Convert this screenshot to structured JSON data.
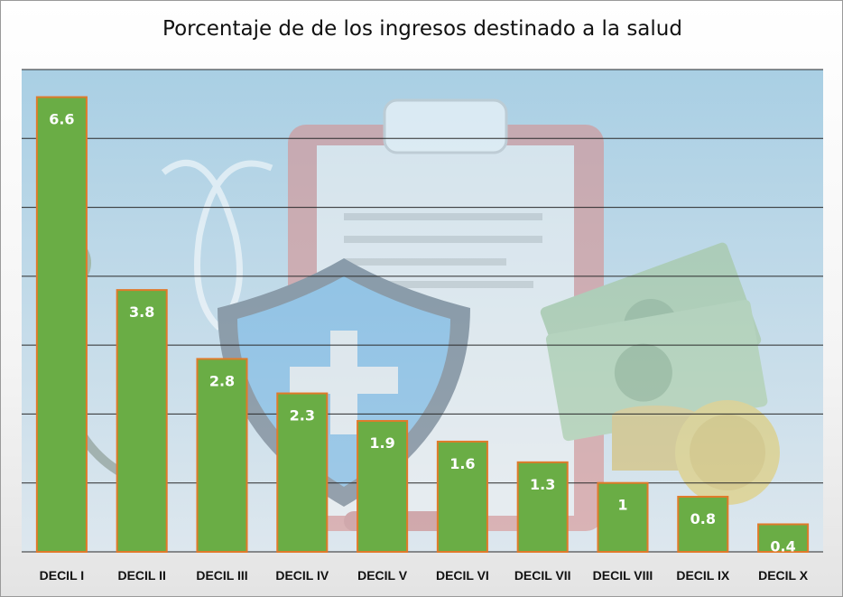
{
  "chart_data": {
    "type": "bar",
    "title": "Porcentaje de de los ingresos destinado a la salud",
    "categories": [
      "DECIL I",
      "DECIL II",
      "DECIL III",
      "DECIL IV",
      "DECIL V",
      "DECIL VI",
      "DECIL VII",
      "DECIL VIII",
      "DECIL IX",
      "DECIL X"
    ],
    "values": [
      6.6,
      3.8,
      2.8,
      2.3,
      1.9,
      1.6,
      1.3,
      1,
      0.8,
      0.4
    ],
    "data_labels": [
      "6.6",
      "3.8",
      "2.8",
      "2.3",
      "1.9",
      "1.6",
      "1.3",
      "1",
      "0.8",
      "0.4"
    ],
    "ylim": [
      0,
      7
    ],
    "grid": true,
    "legend": "none",
    "bar_color": "#6aad45",
    "bar_edge_color": "#e07a2a",
    "label_color": "#ffffff",
    "background_icons": [
      "stethoscope-icon",
      "clipboard-icon",
      "medical-shield-icon",
      "money-icon",
      "coin-icon"
    ]
  }
}
